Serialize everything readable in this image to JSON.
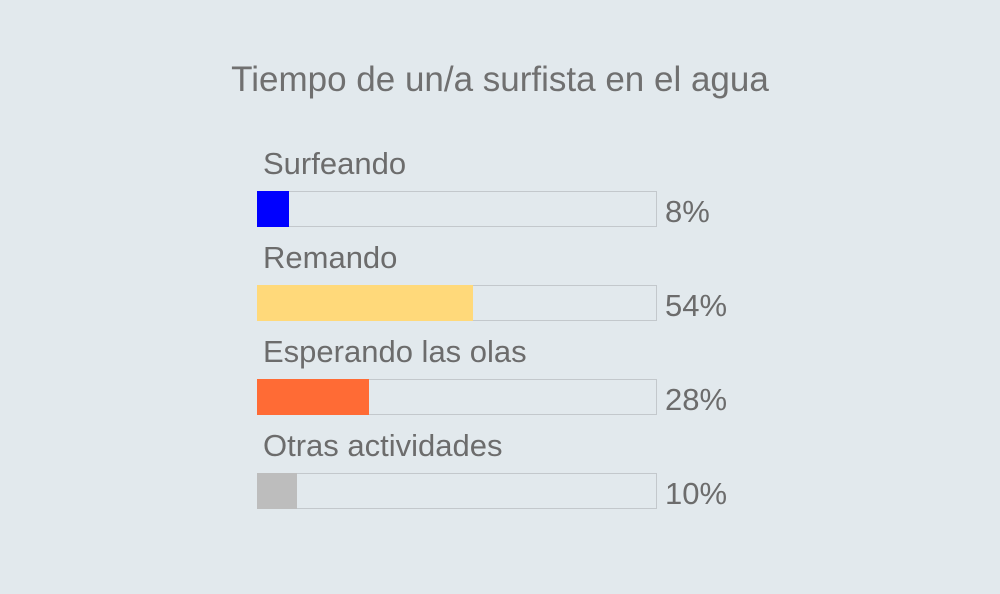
{
  "chart_data": {
    "type": "bar",
    "title": "Tiempo de un/a surfista en el agua",
    "categories": [
      "Surfeando",
      "Remando",
      "Esperando las olas",
      "Otras actividades"
    ],
    "values": [
      8,
      54,
      28,
      10
    ],
    "value_labels": [
      "8%",
      "54%",
      "28%",
      "10%"
    ],
    "colors": [
      "#0000ff",
      "#ffd97a",
      "#ff6b35",
      "#bdbdbd"
    ],
    "xlim": [
      0,
      100
    ],
    "grid": false
  }
}
